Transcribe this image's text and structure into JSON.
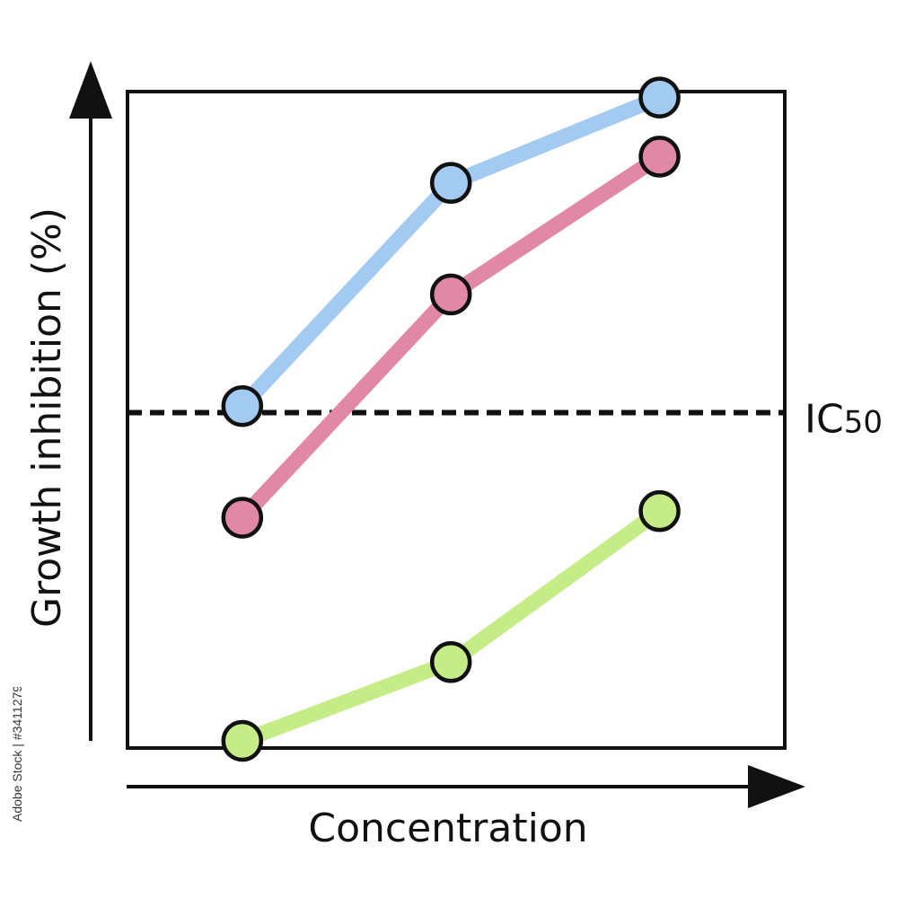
{
  "chart_data": {
    "type": "line",
    "xlabel": "Concentration",
    "ylabel": "Growth inhibition (%)",
    "x": [
      1,
      2,
      3
    ],
    "ylim": [
      0,
      100
    ],
    "xlim": [
      0.45,
      3.6
    ],
    "grid": false,
    "series": [
      {
        "color": "#a3cbf1",
        "values": [
          51,
          85,
          98
        ]
      },
      {
        "color": "#e088a6",
        "values": [
          34,
          68,
          89
        ]
      },
      {
        "color": "#c6ec88",
        "values": [
          0,
          12,
          35
        ]
      }
    ],
    "reference_line": {
      "label": "IC50",
      "label_main": "IC",
      "label_sub": "50",
      "y": 50,
      "style": "dashed"
    }
  },
  "watermark": {
    "text": "Adobe Stock | #341127934"
  }
}
